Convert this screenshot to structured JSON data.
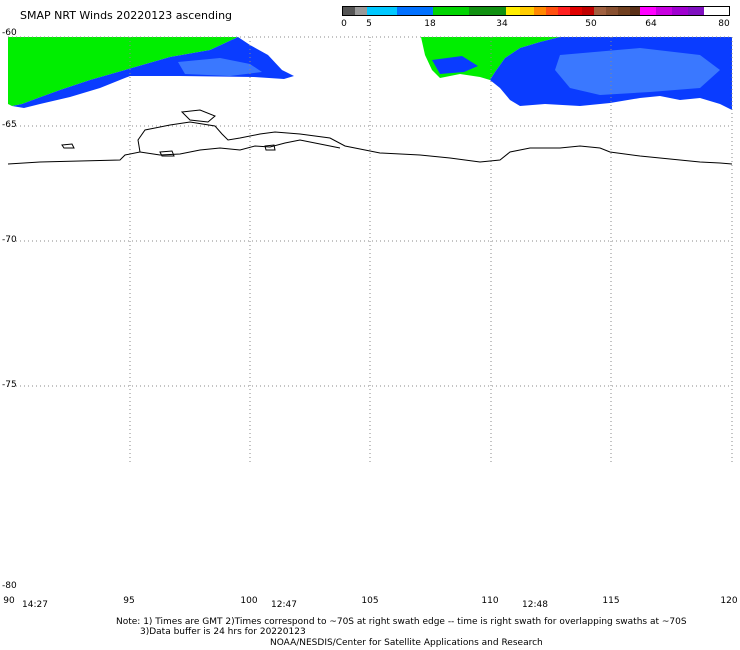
{
  "title": "SMAP NRT Winds 20220123 ascending",
  "legend": {
    "ticks": [
      "0",
      "5",
      "18",
      "34",
      "50",
      "64",
      "80"
    ],
    "colors": [
      "#555555",
      "#999999",
      "#00c8ff",
      "#0070ff",
      "#00d400",
      "#109010",
      "#ffee00",
      "#ff8800",
      "#ff2020",
      "#c00000",
      "#a06040",
      "#5a3018",
      "#ff00ff",
      "#8010c0"
    ]
  },
  "lat_labels": [
    "-60",
    "-65",
    "-70",
    "-75",
    "-80"
  ],
  "lon_labels": [
    "90",
    "95",
    "100",
    "105",
    "110",
    "115",
    "120"
  ],
  "time_labels": [
    "14:27",
    "12:47",
    "12:48"
  ],
  "notes": {
    "line1": "Note: 1) Times are GMT 2)Times correspond to ~70S at right swath edge -- time is right swath for overlapping swaths at ~70S",
    "line2": "3)Data buffer is 24 hrs for 20220123",
    "line3": "NOAA/NESDIS/Center for Satellite Applications and Research"
  },
  "colors": {
    "wind_green": "#00ee00",
    "wind_blue": "#0a3cff",
    "wind_light_blue": "#3a78ff",
    "coast": "#000000",
    "grid": "#888888"
  }
}
